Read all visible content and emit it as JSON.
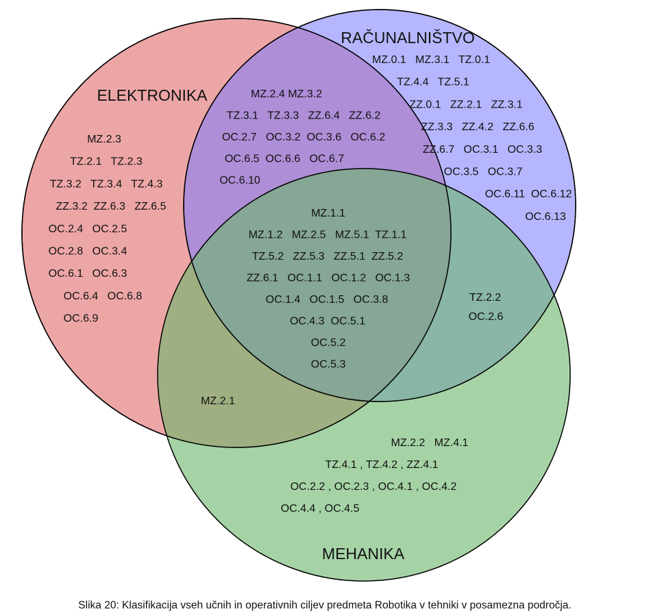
{
  "diagram": {
    "type": "venn",
    "sets": [
      {
        "id": "elektronika",
        "label": "ELEKTRONIKA",
        "color": "#e06666"
      },
      {
        "id": "racunalnistvo",
        "label": "RAČUNALNIŠTVO",
        "color": "#7b7bff"
      },
      {
        "id": "mehanika",
        "label": "MEHANIKA",
        "color": "#6ab56a"
      }
    ],
    "regions": {
      "elektronika_only": [
        "MZ.2.3",
        "TZ.2.1   TZ.2.3",
        "TZ.3.2   TZ.3.4   TZ.4.3",
        "ZZ.3.2  ZZ.6.3   ZZ.6.5",
        "OC.2.4   OC.2.5",
        "OC.2.8   OC.3.4",
        "OC.6.1   OC.6.3",
        "OC.6.4   OC.6.8",
        "OC.6.9"
      ],
      "racunalnistvo_only": [
        "MZ.0.1   MZ.3.1   TZ.0.1",
        "TZ.4.4   TZ.5.1",
        "ZZ.0.1   ZZ.2.1   ZZ.3.1",
        "ZZ.3.3   ZZ.4.2   ZZ.6.6",
        "ZZ.6.7   OC.3.1   OC.3.3",
        "OC.3.5   OC.3.7",
        "OC.6.11  OC.6.12",
        "OC.6.13"
      ],
      "mehanika_only": [
        "MZ.2.2   MZ.4.1",
        "TZ.4.1 , TZ.4.2 , ZZ.4.1",
        "OC.2.2 , OC.2.3 , OC.4.1 , OC.4.2",
        "OC.4.4 , OC.4.5"
      ],
      "elektronika_racunalnistvo": [
        "MZ.2.4 MZ.3.2",
        "TZ.3.1   TZ.3.3   ZZ.6.4   ZZ.6.2",
        "OC.2.7   OC.3.2  OC.3.6   OC.6.2",
        "OC.6.5  OC.6.6   OC.6.7",
        "OC.6.10"
      ],
      "racunalnistvo_mehanika": [
        "TZ.2.2",
        "OC.2.6"
      ],
      "elektronika_mehanika": [
        "MZ.2.1"
      ],
      "all_three": [
        "MZ.1.1",
        "MZ.1.2   MZ.2.5   MZ.5.1  TZ.1.1",
        "TZ.5.2   ZZ.5.3   ZZ.5.1  ZZ.5.2",
        "ZZ.6.1   OC.1.1   OC.1.2   OC.1.3",
        "OC.1.4   OC.1.5   OC.3.8",
        "OC.4.3  OC.5.1",
        "OC.5.2",
        "OC.5.3"
      ]
    }
  },
  "caption": "Slika 20: Klasifikacija vseh učnih in operativnih ciljev predmeta Robotika v tehniki v posamezna področja."
}
